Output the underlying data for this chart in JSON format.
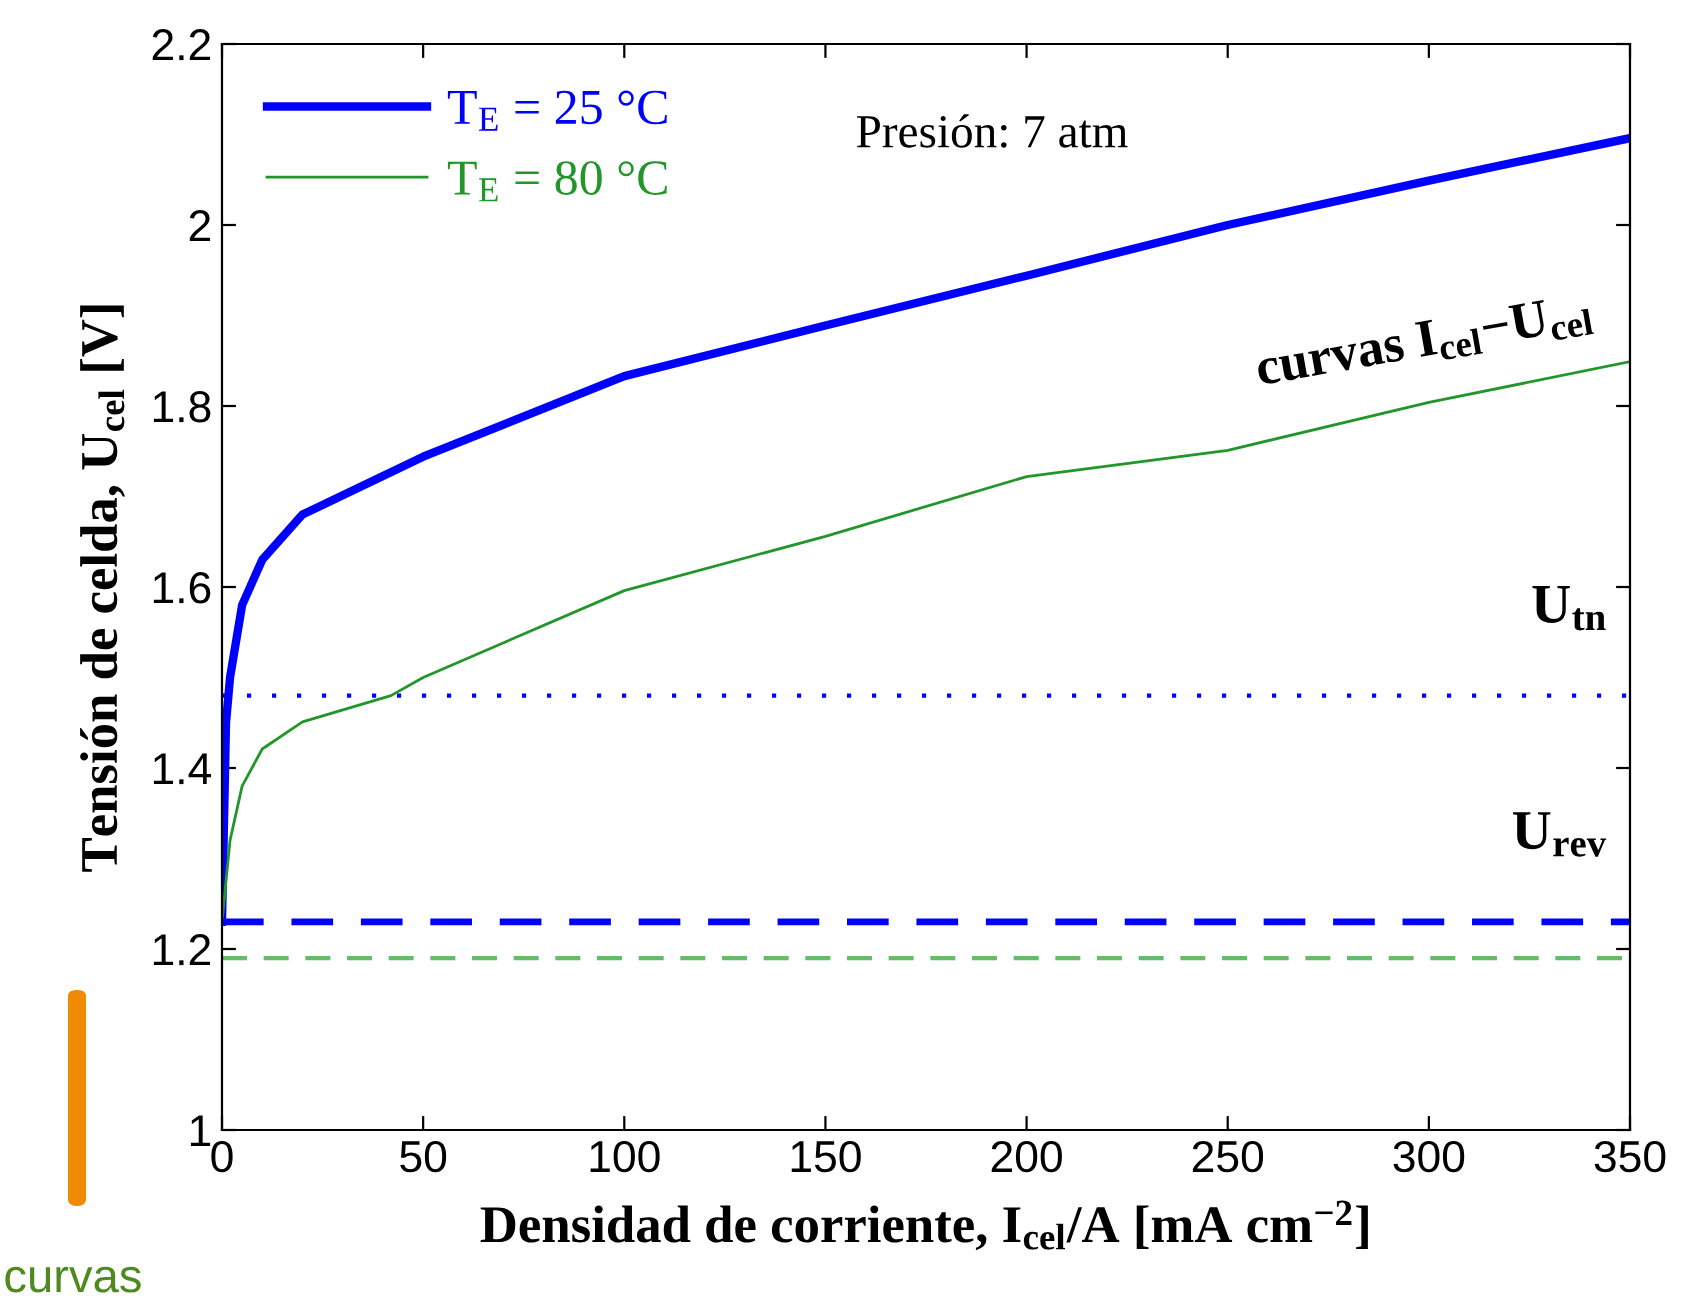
{
  "chart_data": {
    "type": "line",
    "xlabel": "Densidad de corriente, I$_{cel}$/A [mA cm$^{−2}$]",
    "ylabel": "Tensión de celda, U$_{cel}$ [V]",
    "xlim": [
      0,
      350
    ],
    "xticks": [
      0,
      50,
      100,
      150,
      200,
      250,
      300,
      350
    ],
    "ylim": [
      1,
      2.2
    ],
    "yticks": [
      1,
      1.2,
      1.4,
      1.6,
      1.8,
      2,
      2.2
    ],
    "grid": false,
    "legend": "top left",
    "marker": "none",
    "line_style": "solid",
    "series": [
      {
        "name": "T$_{E}$ = 25 °C",
        "color": "#0000ff",
        "x": [
          0,
          1,
          2,
          5,
          10,
          20,
          50,
          100,
          150,
          200,
          250,
          300,
          350
        ],
        "values": [
          1.23,
          1.45,
          1.5,
          1.58,
          1.63,
          1.68,
          1.744,
          1.833,
          1.889,
          1.944,
          2.0,
          2.049,
          2.096
        ]
      },
      {
        "name": "T$_{E}$ = 80 °C",
        "color": "#22962a",
        "x": [
          0,
          2,
          5,
          10,
          20,
          42,
          50,
          100,
          150,
          200,
          250,
          300,
          350
        ],
        "values": [
          1.23,
          1.32,
          1.38,
          1.421,
          1.451,
          1.48,
          1.5,
          1.596,
          1.656,
          1.722,
          1.751,
          1.804,
          1.849
        ]
      }
    ],
    "ref_lines": [
      {
        "axis": "y",
        "value": 1.48,
        "color": "#0000ff",
        "line_style": "dotted"
      },
      {
        "axis": "y",
        "value": 1.23,
        "color": "#0000ff",
        "line_style": "dashed"
      },
      {
        "axis": "y",
        "value": 1.19,
        "color": "#66bb6a",
        "line_style": "dashed"
      }
    ],
    "annotations": [
      "Presión: 7 atm",
      "curvas I$_{cel}$−U$_{cel}$",
      "curvas",
      {
        "text": "U$_{tn}$",
        "x": 350,
        "y": 1.48
      },
      {
        "text": "U$_{rev}$",
        "x": 350,
        "y": 1.23
      }
    ]
  }
}
